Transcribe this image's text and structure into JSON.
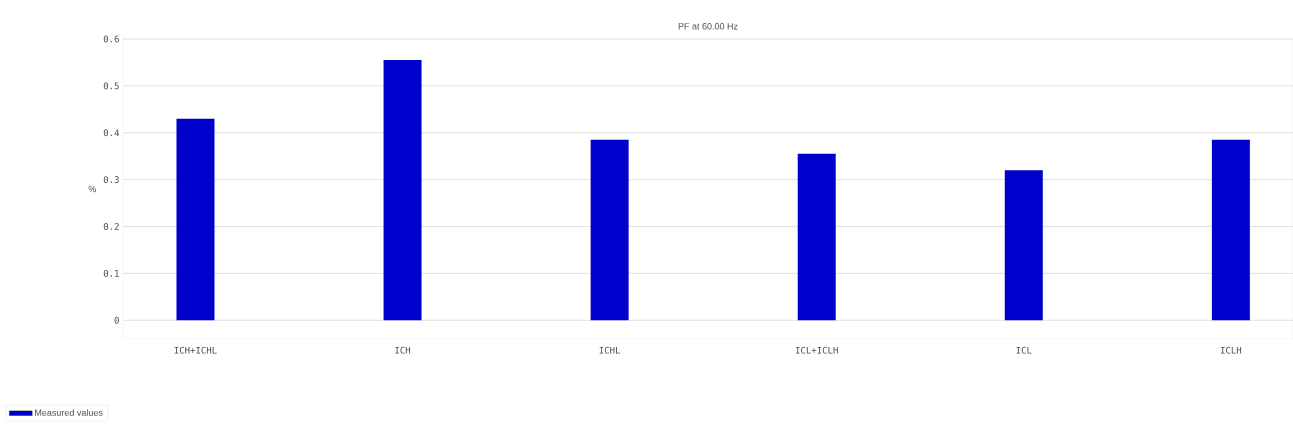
{
  "chart_data": {
    "type": "bar",
    "title": "PF at 60.00 Hz",
    "ylabel": "%",
    "categories": [
      "ICH+ICHL",
      "ICH",
      "ICHL",
      "ICL+ICLH",
      "ICL",
      "ICLH"
    ],
    "series": [
      {
        "name": "Measured values",
        "color": "#0000cc",
        "values": [
          0.43,
          0.555,
          0.385,
          0.355,
          0.32,
          0.385
        ]
      }
    ],
    "ylim": [
      -0.04,
      0.6
    ],
    "yticks": [
      0,
      0.1,
      0.2,
      0.3,
      0.4,
      0.5,
      0.6
    ],
    "grid": "y",
    "legend": "bottom left"
  }
}
